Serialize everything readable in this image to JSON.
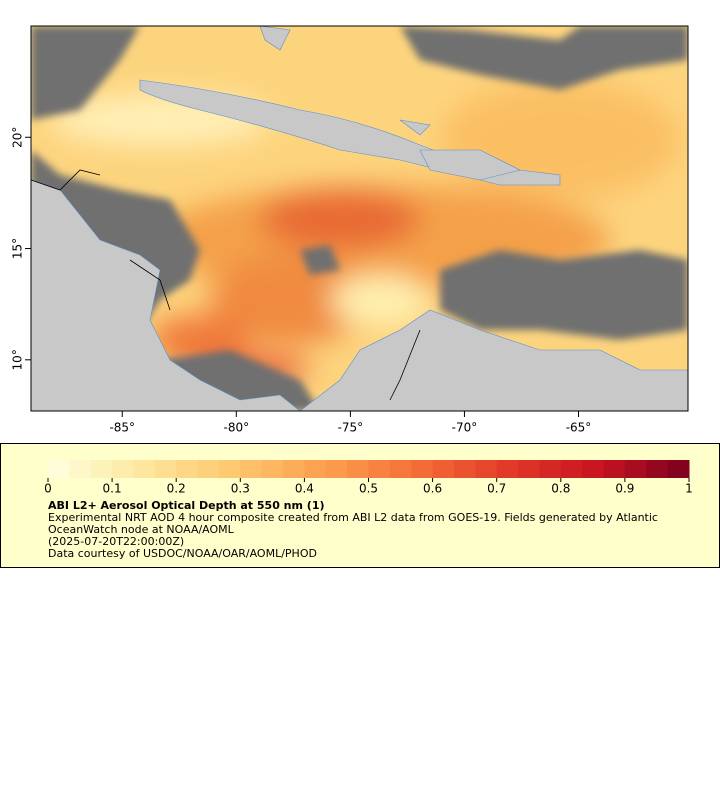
{
  "map": {
    "xlim": [
      -89,
      -60.2
    ],
    "ylim": [
      7.7,
      25
    ],
    "xticks": [
      {
        "value": -85,
        "label": "-85°"
      },
      {
        "value": -80,
        "label": "-80°"
      },
      {
        "value": -75,
        "label": "-75°"
      },
      {
        "value": -70,
        "label": "-70°"
      },
      {
        "value": -65,
        "label": "-65°"
      }
    ],
    "yticks": [
      {
        "value": 10,
        "label": "10°"
      },
      {
        "value": 15,
        "label": "15°"
      },
      {
        "value": 20,
        "label": "20°"
      }
    ]
  },
  "colorbar": {
    "lim": [
      0,
      1
    ],
    "ticks": [
      0,
      0.1,
      0.2,
      0.3,
      0.4,
      0.5,
      0.6,
      0.7,
      0.8,
      0.9,
      1
    ],
    "colors": [
      "#ffffe0",
      "#fee8a0",
      "#fdc870",
      "#fca050",
      "#f57038",
      "#e23a28",
      "#c81420",
      "#7a0020"
    ]
  },
  "legend": {
    "title": "ABI L2+ Aerosol Optical Depth at 550 nm (1)",
    "lines": [
      "Experimental NRT AOD 4 hour composite created from ABI L2 data from GOES-19. Fields generated by Atlantic OceanWatch node at NOAA/AOML",
      "(2025-07-20T22:00:00Z)",
      "Data courtesy of USDOC/NOAA/OAR/AOML/PHOD"
    ]
  }
}
